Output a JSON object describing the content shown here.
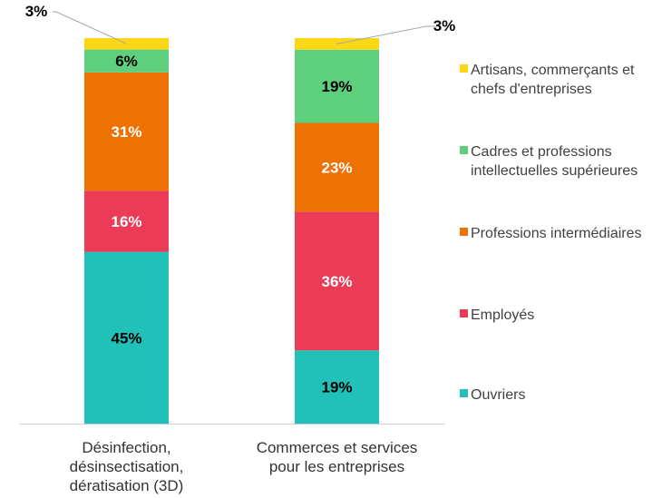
{
  "chart_data": {
    "type": "bar",
    "stacked": true,
    "normalized": true,
    "categories": [
      [
        "Désinfection,",
        "désinsectisation,",
        "dératisation (3D)"
      ],
      [
        "Commerces et services",
        "pour les entreprises"
      ]
    ],
    "series": [
      {
        "name": "Ouvriers",
        "color": "#21C1B9",
        "values": [
          45,
          19
        ],
        "labels": [
          "45%",
          "19%"
        ],
        "label_color": "#000000"
      },
      {
        "name": "Employés",
        "color": "#EB3B57",
        "values": [
          16,
          36
        ],
        "labels": [
          "16%",
          "36%"
        ],
        "label_color": "#ffffff"
      },
      {
        "name": "Professions intermédiaires",
        "color": "#EE7103",
        "values": [
          31,
          23
        ],
        "labels": [
          "31%",
          "23%"
        ],
        "label_color": "#ffffff"
      },
      {
        "name": "Cadres et professions intellectuelles supérieures",
        "color": "#5ECF7D",
        "values": [
          6,
          19
        ],
        "labels": [
          "6%",
          "19%"
        ],
        "label_color": "#000000"
      },
      {
        "name": "Artisans, commerçants et chefs d'entreprises",
        "color": "#FCD715",
        "values": [
          3,
          3
        ],
        "labels": [
          "3%",
          "3%"
        ],
        "label_color": "#000000",
        "callout": true
      }
    ],
    "legend": {
      "position": "right",
      "entries": [
        [
          "Artisans, commerçants et",
          "chefs d'entreprises"
        ],
        [
          "Cadres et professions",
          "intellectuelles supérieures"
        ],
        [
          "Professions intermédiaires"
        ],
        [
          "Employés"
        ],
        [
          "Ouvriers"
        ]
      ]
    },
    "ylim": [
      0,
      100
    ],
    "grid": false
  }
}
